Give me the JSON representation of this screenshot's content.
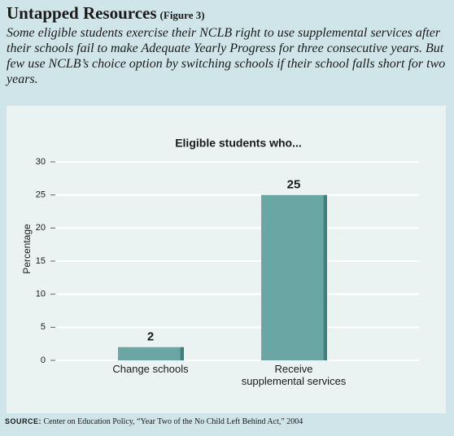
{
  "header": {
    "title": "Untapped Resources",
    "figure": "(Figure 3)",
    "subtitle": "Some eligible students exercise their NCLB right to use supplemental services after their schools fail to make Adequate Yearly Progress for three consecutive years. But few use NCLB’s choice option by switching schools if their school falls short for two years."
  },
  "chart_data": {
    "type": "bar",
    "title": "Eligible students who...",
    "y_label": "Percentage",
    "categories": [
      "Change schools",
      "Receive\nsupplemental services"
    ],
    "values": [
      2,
      25
    ],
    "color": "#6aa6a4",
    "ylim": [
      0,
      30
    ],
    "yticks": [
      0,
      5,
      10,
      15,
      20,
      25,
      30
    ],
    "grid": true
  },
  "footer": {
    "source_label": "SOURCE:",
    "source": "Center on Education Policy, “Year Two of the No Child Left Behind Act,” 2004"
  }
}
